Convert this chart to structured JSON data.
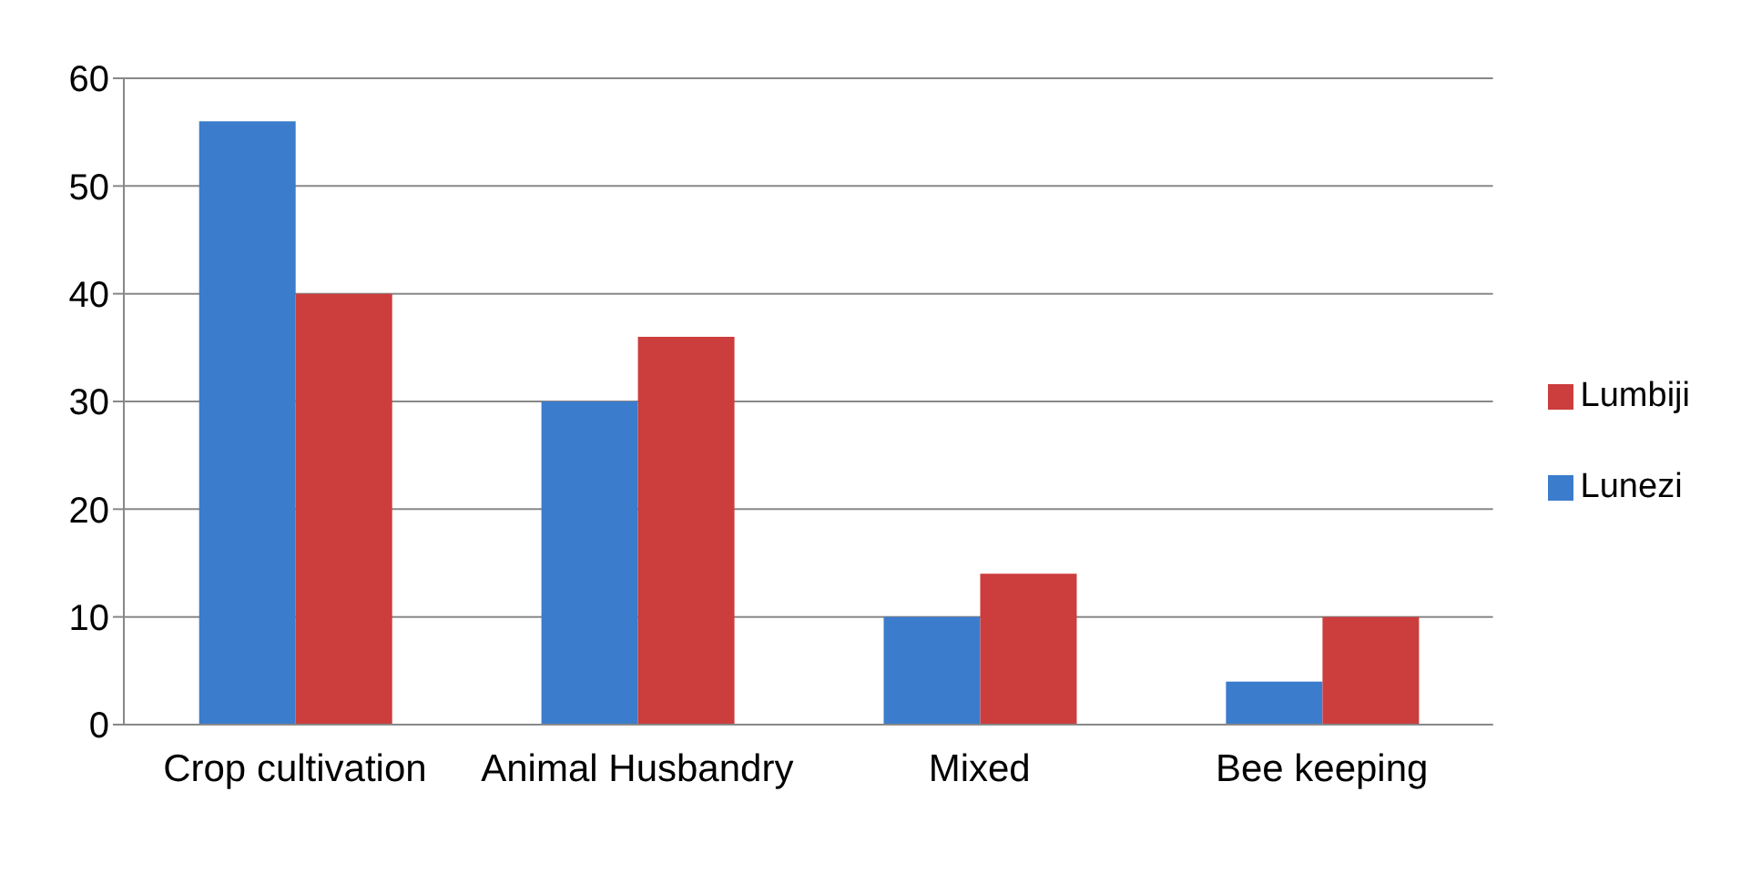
{
  "chart_data": {
    "type": "bar",
    "categories": [
      "Crop cultivation",
      "Animal Husbandry",
      "Mixed",
      "Bee keeping"
    ],
    "series": [
      {
        "name": "Lunezi",
        "color": "#3b7ccc",
        "values": [
          56,
          30,
          10,
          4
        ]
      },
      {
        "name": "Lumbiji",
        "color": "#cc3d3d",
        "values": [
          40,
          36,
          14,
          10
        ]
      }
    ],
    "ylim": [
      0,
      60
    ],
    "yticks": [
      0,
      10,
      20,
      30,
      40,
      50,
      60
    ],
    "grid": "y",
    "legend": "right"
  }
}
